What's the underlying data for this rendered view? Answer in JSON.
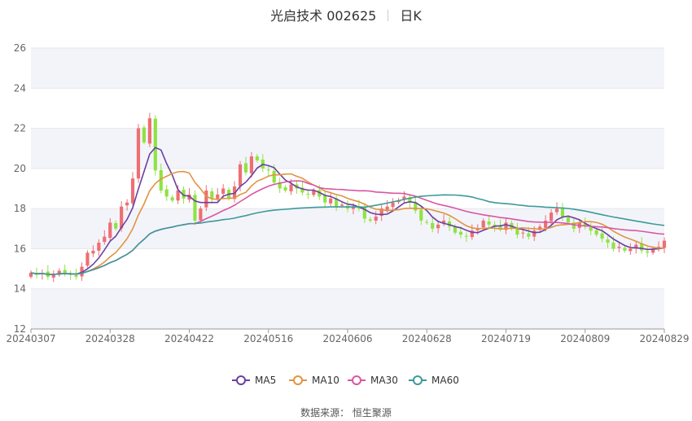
{
  "header": {
    "title": "光启技术 002625",
    "period": "日K"
  },
  "footer": {
    "source_label": "数据来源：",
    "source_name": "恒生聚源"
  },
  "colors": {
    "up": "#ee6e73",
    "down": "#8fe342",
    "MA5": "#6b3fa0",
    "MA10": "#e09442",
    "MA30": "#d957a4",
    "MA60": "#3c9a9a",
    "band": "#f3f4fa"
  },
  "chart_data": {
    "type": "candlestick",
    "ylim": [
      12,
      26
    ],
    "yticks": [
      12,
      14,
      16,
      18,
      20,
      22,
      24,
      26
    ],
    "xticks": [
      {
        "label": "20240307",
        "index": 0
      },
      {
        "label": "20240328",
        "index": 14
      },
      {
        "label": "20240422",
        "index": 28
      },
      {
        "label": "20240516",
        "index": 42
      },
      {
        "label": "20240606",
        "index": 56
      },
      {
        "label": "20240628",
        "index": 70
      },
      {
        "label": "20240719",
        "index": 84
      },
      {
        "label": "20240809",
        "index": 98
      },
      {
        "label": "20240829",
        "index": 112
      }
    ],
    "legend": [
      "MA5",
      "MA10",
      "MA30",
      "MA60"
    ],
    "legend_position": "bottom-center",
    "closes": [
      14.8,
      14.7,
      14.8,
      14.6,
      14.7,
      14.9,
      14.8,
      14.7,
      14.6,
      15.1,
      15.8,
      15.9,
      16.3,
      16.6,
      17.3,
      17.0,
      18.1,
      18.3,
      19.5,
      22.0,
      21.3,
      22.5,
      19.9,
      18.9,
      18.6,
      18.4,
      18.9,
      18.5,
      18.7,
      17.4,
      18.0,
      18.9,
      18.5,
      18.7,
      19.0,
      18.5,
      19.1,
      20.2,
      19.8,
      20.6,
      20.4,
      20.0,
      19.9,
      19.3,
      19.0,
      18.9,
      19.2,
      19.0,
      18.8,
      18.7,
      18.9,
      18.6,
      18.3,
      18.5,
      18.1,
      18.2,
      18.0,
      18.1,
      18.0,
      17.5,
      17.4,
      17.6,
      18.0,
      18.1,
      18.3,
      18.4,
      18.6,
      18.3,
      17.9,
      17.4,
      17.3,
      17.0,
      17.2,
      17.4,
      17.1,
      16.8,
      16.7,
      16.6,
      16.9,
      17.0,
      17.4,
      17.2,
      17.1,
      17.0,
      17.3,
      17.0,
      16.7,
      16.8,
      16.6,
      16.9,
      17.1,
      17.4,
      17.8,
      18.0,
      17.6,
      17.3,
      17.0,
      17.3,
      17.1,
      16.9,
      16.7,
      16.5,
      16.3,
      16.0,
      16.1,
      15.9,
      16.0,
      16.2,
      15.9,
      15.8,
      16.0,
      16.1,
      16.4
    ]
  }
}
